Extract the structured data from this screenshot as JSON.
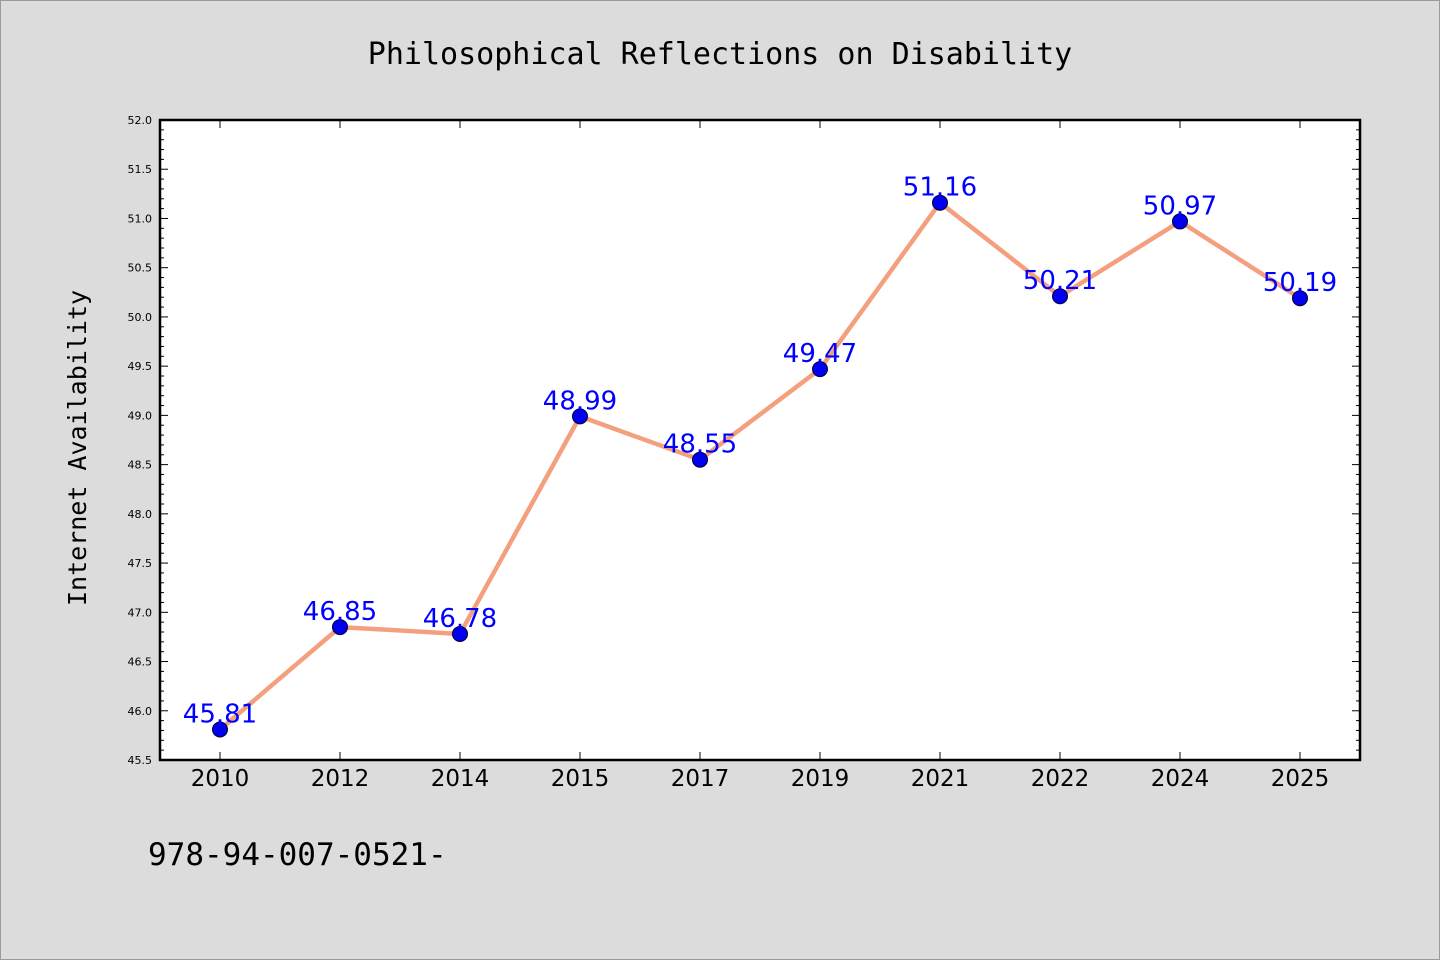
{
  "chart_data": {
    "type": "line",
    "title": "Philosophical Reflections on Disability",
    "xlabel": "",
    "ylabel": "Internet Availability",
    "categories": [
      "2010",
      "2012",
      "2014",
      "2015",
      "2017",
      "2019",
      "2021",
      "2022",
      "2024",
      "2025"
    ],
    "series": [
      {
        "values": [
          45.81,
          46.85,
          46.78,
          48.99,
          48.55,
          49.47,
          51.16,
          50.21,
          50.97,
          50.19
        ],
        "labels": [
          "45.81",
          "46.85",
          "46.78",
          "48.99",
          "48.55",
          "49.47",
          "51.16",
          "50.21",
          "50.97",
          "50.19"
        ]
      }
    ],
    "ylim": [
      45.5,
      52.0
    ],
    "yticks": [
      "45.5",
      "46.0",
      "46.5",
      "47.0",
      "47.5",
      "48.0",
      "48.5",
      "49.0",
      "49.5",
      "50.0",
      "50.5",
      "51.0",
      "51.5",
      "52.0"
    ],
    "grid": false,
    "line_color": "#f4a07e",
    "marker_color": "#0000ee",
    "label_color": "#0000ff"
  },
  "footer": {
    "text": "978-94-007-0521-"
  }
}
